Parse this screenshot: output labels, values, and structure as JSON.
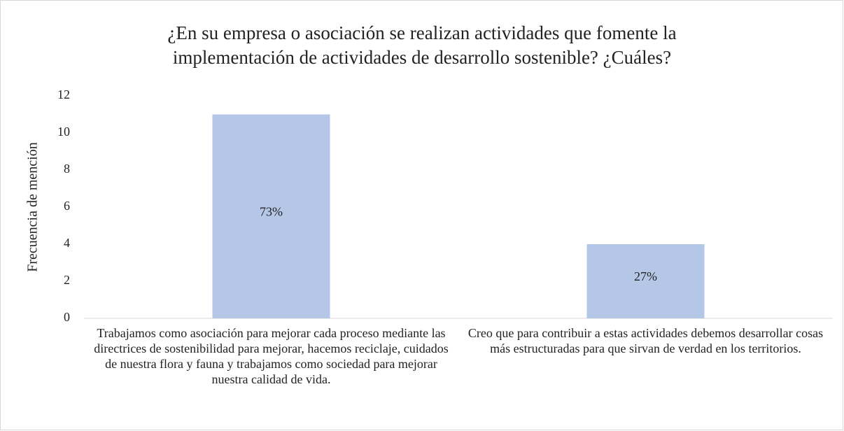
{
  "chart_data": {
    "type": "bar",
    "title": "¿En su empresa o asociación se realizan actividades que fomente la implementación de actividades de desarrollo sostenible? ¿Cuáles?",
    "y_label": "Frecuencia de mención",
    "categories": [
      "Trabajamos como asociación para mejorar cada proceso mediante las directrices de sostenibilidad para mejorar, hacemos reciclaje, cuidados de nuestra flora y fauna y trabajamos como sociedad para mejorar nuestra calidad de vida.",
      "Creo que para contribuir a estas actividades debemos desarrollar cosas más estructuradas para que sirvan de verdad en los territorios."
    ],
    "values": [
      11,
      4
    ],
    "value_labels": [
      "73%",
      "27%"
    ],
    "color": "#b4c7e7",
    "ylim": [
      0,
      12
    ],
    "yticks": [
      0,
      2,
      4,
      6,
      8,
      10,
      12
    ],
    "grid": false
  }
}
